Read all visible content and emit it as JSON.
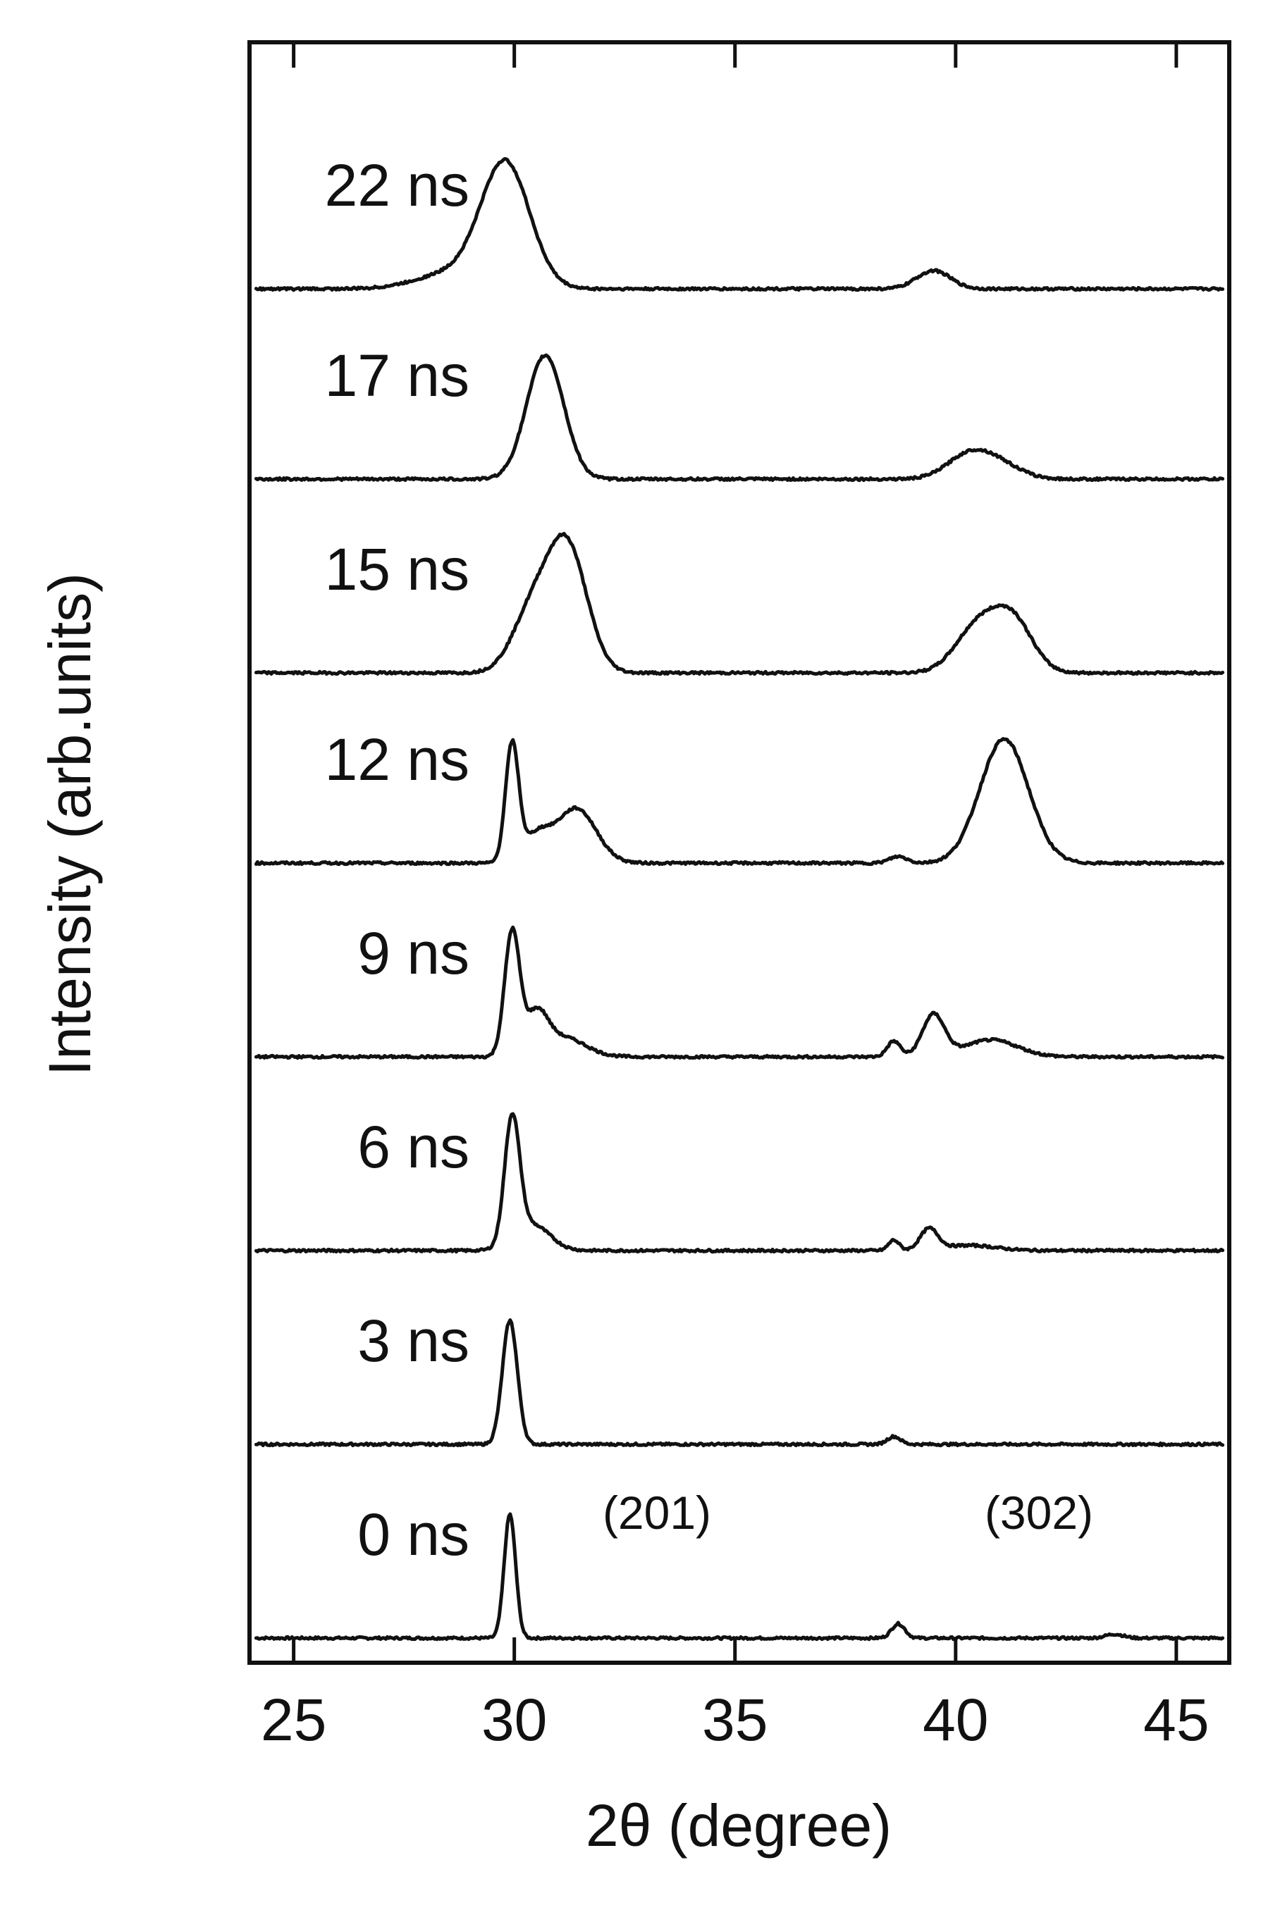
{
  "chart_data": {
    "type": "line",
    "title": "",
    "xlabel": "2θ (degree)",
    "ylabel": "Intensity (arb.units)",
    "xlim": [
      24,
      46.2
    ],
    "xticks": [
      25,
      30,
      35,
      40,
      45
    ],
    "tick_labels": [
      "25",
      "30",
      "35",
      "40",
      "45"
    ],
    "y_scale": "arbitrary, stacked offset traces (bottom to top: 0 ns → 22 ns)",
    "annotations": [
      "(201)",
      "(302)"
    ],
    "series": [
      {
        "name": "0 ns",
        "peaks": [
          {
            "center": 29.9,
            "height": 0.95,
            "width": 0.13
          },
          {
            "center": 38.7,
            "height": 0.11,
            "width": 0.15
          },
          {
            "center": 43.6,
            "height": 0.03,
            "width": 0.2
          }
        ]
      },
      {
        "name": "3 ns",
        "peaks": [
          {
            "center": 29.9,
            "height": 0.95,
            "width": 0.17
          },
          {
            "center": 38.6,
            "height": 0.06,
            "width": 0.15
          }
        ]
      },
      {
        "name": "6 ns",
        "peaks": [
          {
            "center": 29.95,
            "height": 0.95,
            "width": 0.17
          },
          {
            "center": 30.4,
            "height": 0.2,
            "width": 0.4
          },
          {
            "center": 38.6,
            "height": 0.08,
            "width": 0.12
          },
          {
            "center": 39.4,
            "height": 0.16,
            "width": 0.2
          },
          {
            "center": 40.3,
            "height": 0.04,
            "width": 0.6
          }
        ]
      },
      {
        "name": "9 ns",
        "peaks": [
          {
            "center": 29.95,
            "height": 0.95,
            "width": 0.17
          },
          {
            "center": 30.5,
            "height": 0.3,
            "width": 0.25
          },
          {
            "center": 31.1,
            "height": 0.15,
            "width": 0.5
          },
          {
            "center": 38.6,
            "height": 0.12,
            "width": 0.15
          },
          {
            "center": 39.5,
            "height": 0.32,
            "width": 0.25
          },
          {
            "center": 40.8,
            "height": 0.13,
            "width": 0.6
          }
        ]
      },
      {
        "name": "12 ns",
        "peaks": [
          {
            "center": 29.95,
            "height": 0.9,
            "width": 0.15
          },
          {
            "center": 30.5,
            "height": 0.2,
            "width": 0.3
          },
          {
            "center": 31.4,
            "height": 0.42,
            "width": 0.45
          },
          {
            "center": 38.7,
            "height": 0.05,
            "width": 0.2
          },
          {
            "center": 41.1,
            "height": 0.95,
            "width": 0.55
          }
        ]
      },
      {
        "name": "15 ns",
        "peaks": [
          {
            "center": 30.4,
            "height": 0.45,
            "width": 0.45
          },
          {
            "center": 31.2,
            "height": 0.95,
            "width": 0.45
          },
          {
            "center": 40.5,
            "height": 0.35,
            "width": 0.5
          },
          {
            "center": 41.3,
            "height": 0.38,
            "width": 0.45
          }
        ]
      },
      {
        "name": "17 ns",
        "peaks": [
          {
            "center": 30.7,
            "height": 0.95,
            "width": 0.42
          },
          {
            "center": 40.3,
            "height": 0.18,
            "width": 0.5
          },
          {
            "center": 41.0,
            "height": 0.1,
            "width": 0.5
          }
        ]
      },
      {
        "name": "22 ns",
        "peaks": [
          {
            "center": 29.8,
            "height": 0.95,
            "width": 0.55
          },
          {
            "center": 28.6,
            "height": 0.12,
            "width": 0.8
          },
          {
            "center": 39.5,
            "height": 0.14,
            "width": 0.38
          }
        ]
      }
    ]
  }
}
